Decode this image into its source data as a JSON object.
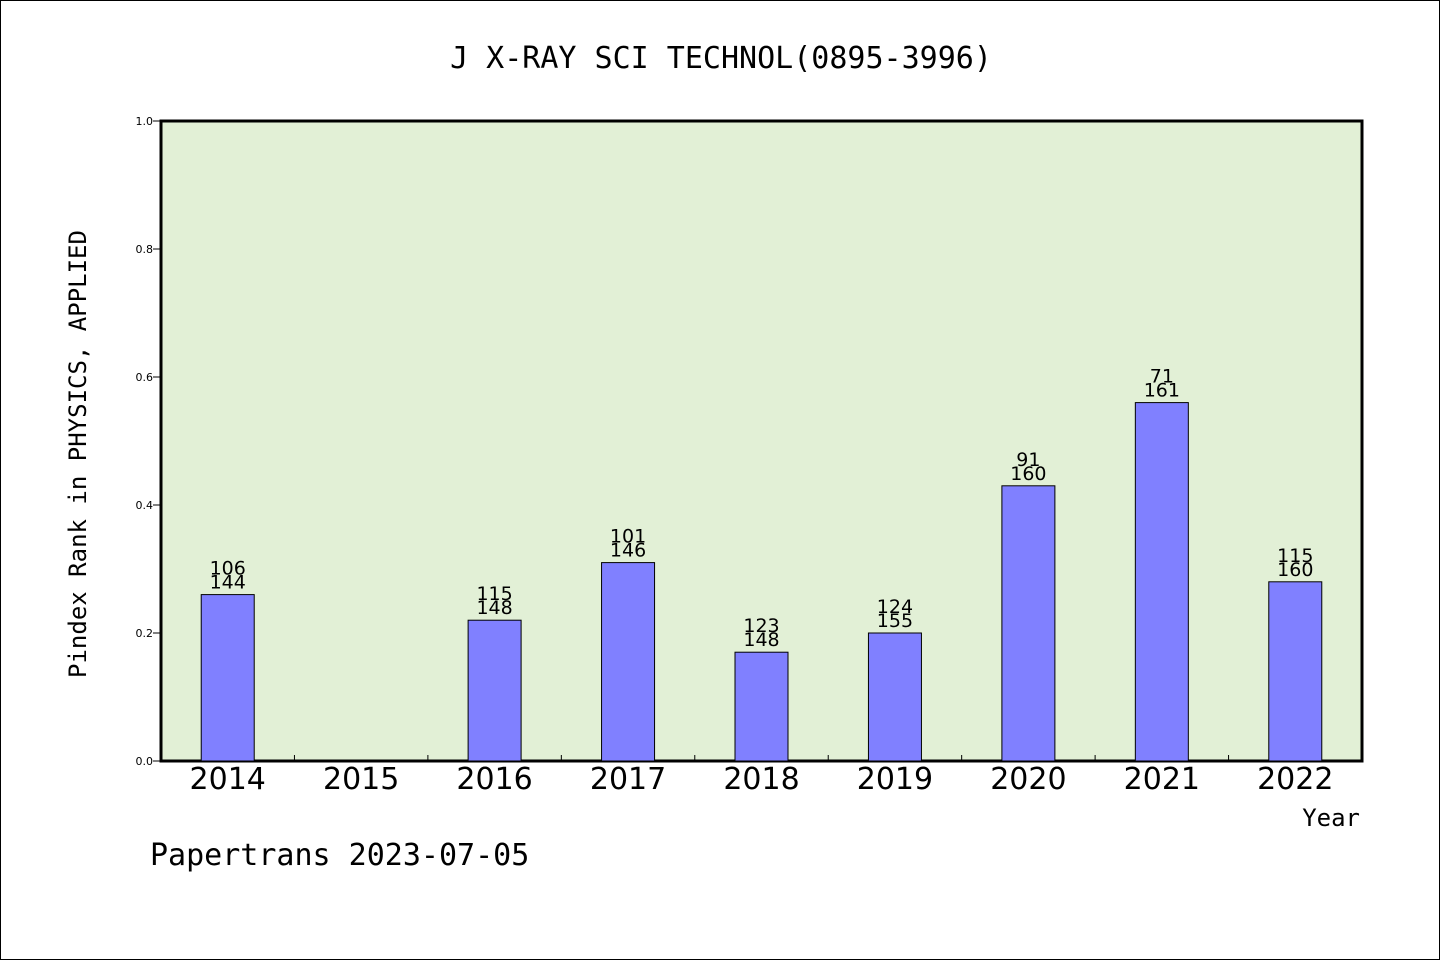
{
  "chart_data": {
    "type": "bar",
    "title": "J X-RAY SCI TECHNOL(0895-3996)",
    "xlabel": "Year",
    "ylabel": "Pindex Rank in PHYSICS, APPLIED",
    "ylim": [
      0,
      1.0
    ],
    "yticks": [
      "0.0",
      "0.2",
      "0.4",
      "0.6",
      "0.8",
      "1.0"
    ],
    "ytick_values": [
      0.0,
      0.2,
      0.4,
      0.6,
      0.8,
      1.0
    ],
    "categories": [
      "2014",
      "2015",
      "2016",
      "2017",
      "2018",
      "2019",
      "2020",
      "2021",
      "2022"
    ],
    "values": [
      0.26,
      null,
      0.22,
      0.31,
      0.17,
      0.2,
      0.43,
      0.56,
      0.28
    ],
    "rank": [
      "106",
      "",
      "115",
      "101",
      "123",
      "124",
      "91",
      "71",
      "115"
    ],
    "total": [
      "144",
      "",
      "148",
      "146",
      "148",
      "155",
      "160",
      "161",
      "160"
    ],
    "bar_color": "#8080ff",
    "plot_background": "#e2f0d6",
    "footer": "Papertrans 2023-07-05"
  }
}
